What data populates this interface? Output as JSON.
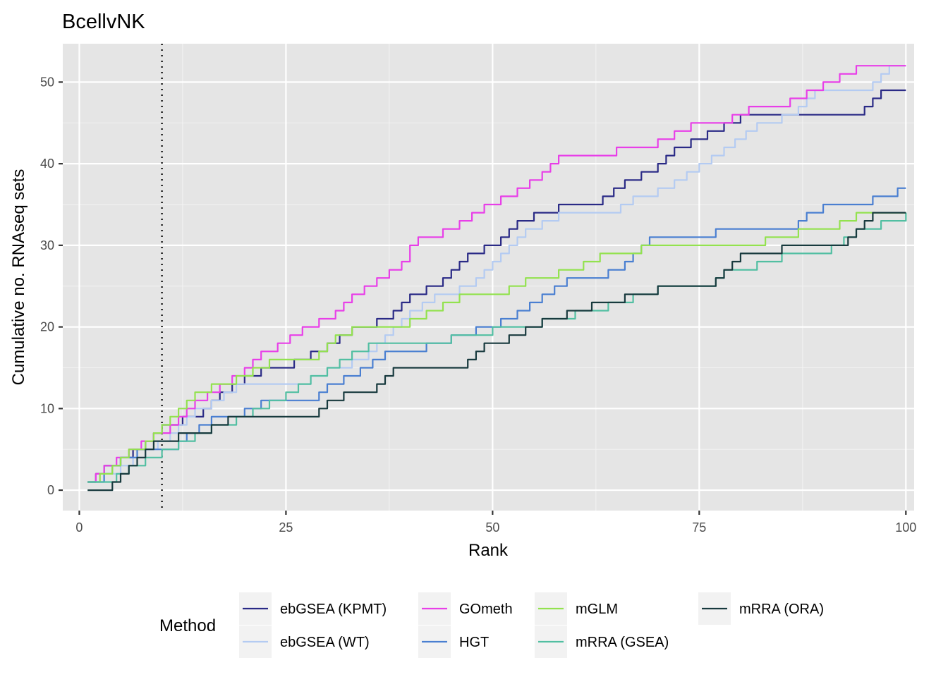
{
  "chart_data": {
    "type": "line",
    "title": "BcellvNK",
    "xlabel": "Rank",
    "ylabel": "Cumulative no. RNAseq sets",
    "xlim": [
      -2,
      101
    ],
    "ylim": [
      -2.5,
      54.7
    ],
    "x_ticks": [
      0,
      25,
      50,
      75,
      100
    ],
    "x_tick_labels": [
      "0",
      "25",
      "50",
      "75",
      "100"
    ],
    "y_ticks": [
      0,
      10,
      20,
      30,
      40,
      50
    ],
    "y_tick_labels": [
      "0",
      "10",
      "20",
      "30",
      "40",
      "50"
    ],
    "grid": true,
    "vline": {
      "x": 10,
      "style": "dotted"
    },
    "legend": {
      "title": "Method",
      "position": "bottom"
    },
    "series": [
      {
        "name": "ebGSEA (KPMT)",
        "color": "#2a2a86",
        "points": [
          [
            1,
            1
          ],
          [
            3,
            3
          ],
          [
            5,
            4
          ],
          [
            8,
            6
          ],
          [
            10,
            8
          ],
          [
            15,
            10
          ],
          [
            17,
            12
          ],
          [
            20,
            14
          ],
          [
            22,
            15
          ],
          [
            26,
            16
          ],
          [
            28,
            17
          ],
          [
            30,
            18
          ],
          [
            33,
            20
          ],
          [
            36,
            21
          ],
          [
            38,
            22
          ],
          [
            40,
            24
          ],
          [
            42,
            25
          ],
          [
            44,
            26
          ],
          [
            47,
            29
          ],
          [
            49,
            30
          ],
          [
            51,
            31
          ],
          [
            53,
            33
          ],
          [
            55,
            34
          ],
          [
            58,
            35
          ],
          [
            62,
            35
          ],
          [
            66,
            38
          ],
          [
            68,
            39
          ],
          [
            70,
            40
          ],
          [
            72,
            42
          ],
          [
            74,
            43
          ],
          [
            76,
            44
          ],
          [
            78,
            45
          ],
          [
            80,
            46
          ],
          [
            85,
            46
          ],
          [
            93,
            46
          ],
          [
            95,
            47
          ],
          [
            97,
            49
          ],
          [
            100,
            49
          ]
        ]
      },
      {
        "name": "ebGSEA (WT)",
        "color": "#b4cbf2",
        "points": [
          [
            1,
            1
          ],
          [
            3,
            2
          ],
          [
            5,
            3
          ],
          [
            8,
            5
          ],
          [
            11,
            7
          ],
          [
            14,
            10
          ],
          [
            16,
            11
          ],
          [
            19,
            13
          ],
          [
            25,
            13
          ],
          [
            28,
            14
          ],
          [
            30,
            15
          ],
          [
            33,
            16
          ],
          [
            35,
            17
          ],
          [
            38,
            20
          ],
          [
            40,
            22
          ],
          [
            43,
            24
          ],
          [
            46,
            25
          ],
          [
            48,
            26
          ],
          [
            51,
            29
          ],
          [
            54,
            32
          ],
          [
            56,
            33
          ],
          [
            58,
            34
          ],
          [
            64,
            34
          ],
          [
            67,
            36
          ],
          [
            70,
            37
          ],
          [
            72,
            38
          ],
          [
            75,
            40
          ],
          [
            78,
            42
          ],
          [
            82,
            45
          ],
          [
            85,
            46
          ],
          [
            87,
            47
          ],
          [
            89,
            49
          ],
          [
            94,
            49
          ],
          [
            96,
            50
          ],
          [
            98,
            52
          ],
          [
            100,
            52
          ]
        ]
      },
      {
        "name": "GOmeth",
        "color": "#e83fe8",
        "points": [
          [
            1,
            1
          ],
          [
            3,
            3
          ],
          [
            6,
            5
          ],
          [
            9,
            7
          ],
          [
            11,
            8
          ],
          [
            14,
            11
          ],
          [
            17,
            13
          ],
          [
            20,
            15
          ],
          [
            22,
            17
          ],
          [
            24,
            18
          ],
          [
            27,
            20
          ],
          [
            29,
            21
          ],
          [
            31,
            22
          ],
          [
            33,
            24
          ],
          [
            36,
            26
          ],
          [
            39,
            28
          ],
          [
            41,
            31
          ],
          [
            44,
            32
          ],
          [
            46,
            33
          ],
          [
            49,
            35
          ],
          [
            51,
            36
          ],
          [
            53,
            37
          ],
          [
            56,
            39
          ],
          [
            58,
            41
          ],
          [
            63,
            41
          ],
          [
            65,
            42
          ],
          [
            68,
            42
          ],
          [
            70,
            43
          ],
          [
            72,
            44
          ],
          [
            74,
            45
          ],
          [
            77,
            45
          ],
          [
            79,
            46
          ],
          [
            81,
            47
          ],
          [
            84,
            47
          ],
          [
            86,
            48
          ],
          [
            88,
            49
          ],
          [
            90,
            50
          ],
          [
            92,
            51
          ],
          [
            94,
            52
          ],
          [
            100,
            52
          ]
        ]
      },
      {
        "name": "HGT",
        "color": "#4a7fd1",
        "points": [
          [
            1,
            1
          ],
          [
            3,
            2
          ],
          [
            5,
            4
          ],
          [
            7,
            5
          ],
          [
            11,
            5
          ],
          [
            13,
            7
          ],
          [
            16,
            9
          ],
          [
            20,
            10
          ],
          [
            22,
            11
          ],
          [
            28,
            11
          ],
          [
            30,
            13
          ],
          [
            32,
            14
          ],
          [
            34,
            15
          ],
          [
            37,
            17
          ],
          [
            42,
            18
          ],
          [
            45,
            19
          ],
          [
            48,
            20
          ],
          [
            51,
            21
          ],
          [
            53,
            22
          ],
          [
            56,
            24
          ],
          [
            59,
            26
          ],
          [
            64,
            27
          ],
          [
            66,
            28
          ],
          [
            69,
            31
          ],
          [
            75,
            31
          ],
          [
            77,
            32
          ],
          [
            86,
            32
          ],
          [
            88,
            34
          ],
          [
            90,
            35
          ],
          [
            96,
            36
          ],
          [
            99,
            37
          ],
          [
            100,
            37
          ]
        ]
      },
      {
        "name": "mGLM",
        "color": "#93e24f",
        "points": [
          [
            1,
            1
          ],
          [
            4,
            3
          ],
          [
            6,
            5
          ],
          [
            8,
            6
          ],
          [
            10,
            8
          ],
          [
            12,
            10
          ],
          [
            14,
            12
          ],
          [
            16,
            13
          ],
          [
            19,
            14
          ],
          [
            21,
            15
          ],
          [
            23,
            16
          ],
          [
            28,
            16
          ],
          [
            31,
            19
          ],
          [
            33,
            20
          ],
          [
            37,
            20
          ],
          [
            40,
            21
          ],
          [
            42,
            22
          ],
          [
            44,
            23
          ],
          [
            46,
            24
          ],
          [
            50,
            24
          ],
          [
            52,
            25
          ],
          [
            54,
            26
          ],
          [
            58,
            27
          ],
          [
            61,
            28
          ],
          [
            63,
            29
          ],
          [
            66,
            29
          ],
          [
            68,
            30
          ],
          [
            81,
            30
          ],
          [
            83,
            31
          ],
          [
            87,
            32
          ],
          [
            92,
            33
          ],
          [
            94,
            34
          ],
          [
            100,
            34
          ]
        ]
      },
      {
        "name": "mRRA (GSEA)",
        "color": "#52bfa2",
        "points": [
          [
            1,
            1
          ],
          [
            3,
            1
          ],
          [
            6,
            3
          ],
          [
            10,
            5
          ],
          [
            12,
            6
          ],
          [
            14,
            7
          ],
          [
            16,
            8
          ],
          [
            19,
            9
          ],
          [
            21,
            10
          ],
          [
            23,
            11
          ],
          [
            25,
            12
          ],
          [
            28,
            14
          ],
          [
            30,
            15
          ],
          [
            33,
            17
          ],
          [
            35,
            18
          ],
          [
            44,
            18
          ],
          [
            45,
            19
          ],
          [
            50,
            20
          ],
          [
            53,
            20
          ],
          [
            56,
            21
          ],
          [
            60,
            22
          ],
          [
            64,
            23
          ],
          [
            67,
            24
          ],
          [
            70,
            25
          ],
          [
            76,
            25
          ],
          [
            78,
            27
          ],
          [
            82,
            28
          ],
          [
            85,
            29
          ],
          [
            91,
            30
          ],
          [
            94,
            32
          ],
          [
            97,
            33
          ],
          [
            100,
            34
          ]
        ]
      },
      {
        "name": "mRRA (ORA)",
        "color": "#183a3e",
        "points": [
          [
            1,
            0
          ],
          [
            3,
            0
          ],
          [
            6,
            3
          ],
          [
            9,
            6
          ],
          [
            12,
            7
          ],
          [
            16,
            8
          ],
          [
            18,
            9
          ],
          [
            28,
            9
          ],
          [
            30,
            11
          ],
          [
            32,
            12
          ],
          [
            35,
            12
          ],
          [
            38,
            15
          ],
          [
            45,
            15
          ],
          [
            47,
            16
          ],
          [
            49,
            18
          ],
          [
            52,
            19
          ],
          [
            54,
            20
          ],
          [
            56,
            21
          ],
          [
            59,
            22
          ],
          [
            62,
            23
          ],
          [
            66,
            24
          ],
          [
            68,
            24
          ],
          [
            70,
            25
          ],
          [
            76,
            25
          ],
          [
            79,
            28
          ],
          [
            80,
            29
          ],
          [
            83,
            29
          ],
          [
            85,
            30
          ],
          [
            92,
            30
          ],
          [
            94,
            32
          ],
          [
            96,
            34
          ],
          [
            100,
            34
          ]
        ]
      }
    ]
  }
}
